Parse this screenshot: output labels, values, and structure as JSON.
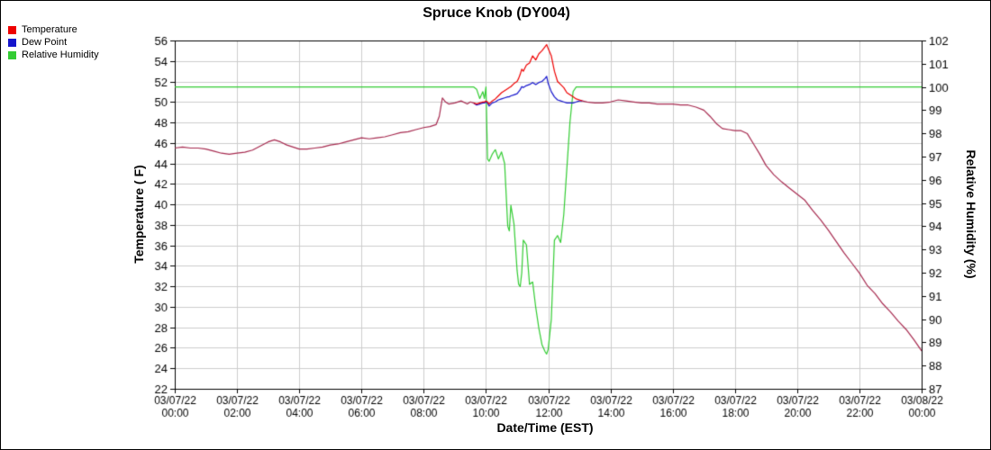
{
  "chart_data": {
    "type": "line",
    "title": "Spruce Knob (DY004)",
    "xlabel": "Date/Time (EST)",
    "ylabel_left": "Temperature ( F)",
    "ylabel_right": "Relative Humidity (%)",
    "legend_position": "top-left",
    "grid": true,
    "colors": {
      "temperature": "#ee0000",
      "dew_point": "#1515cc",
      "humidity": "#33cc33",
      "temp_dew_overlap": "#a62a4f",
      "grid": "#cccccc",
      "axis": "#000000"
    },
    "x_axis": {
      "min": 0,
      "max": 24,
      "ticks": [
        0,
        2,
        4,
        6,
        8,
        10,
        12,
        14,
        16,
        18,
        20,
        22,
        24
      ],
      "tick_labels": [
        [
          "03/07/22",
          "00:00"
        ],
        [
          "03/07/22",
          "02:00"
        ],
        [
          "03/07/22",
          "04:00"
        ],
        [
          "03/07/22",
          "06:00"
        ],
        [
          "03/07/22",
          "08:00"
        ],
        [
          "03/07/22",
          "10:00"
        ],
        [
          "03/07/22",
          "12:00"
        ],
        [
          "03/07/22",
          "14:00"
        ],
        [
          "03/07/22",
          "16:00"
        ],
        [
          "03/07/22",
          "18:00"
        ],
        [
          "03/07/22",
          "20:00"
        ],
        [
          "03/07/22",
          "22:00"
        ],
        [
          "03/08/22",
          "00:00"
        ]
      ]
    },
    "y_left": {
      "min": 22,
      "max": 56,
      "step": 2
    },
    "y_right": {
      "min": 87,
      "max": 102,
      "step": 1
    },
    "x_hours": [
      0,
      0.25,
      0.5,
      0.75,
      1,
      1.25,
      1.5,
      1.75,
      2,
      2.25,
      2.5,
      2.75,
      3,
      3.2,
      3.4,
      3.6,
      3.8,
      4,
      4.25,
      4.5,
      4.75,
      5,
      5.25,
      5.5,
      5.75,
      6,
      6.25,
      6.5,
      6.75,
      7,
      7.25,
      7.5,
      7.75,
      8,
      8.2,
      8.4,
      8.5,
      8.6,
      8.7,
      8.8,
      9,
      9.2,
      9.4,
      9.5,
      9.6,
      9.7,
      9.8,
      9.9,
      9.95,
      10,
      10.05,
      10.1,
      10.2,
      10.3,
      10.4,
      10.5,
      10.6,
      10.7,
      10.75,
      10.8,
      10.9,
      11,
      11.05,
      11.1,
      11.15,
      11.2,
      11.3,
      11.4,
      11.5,
      11.6,
      11.7,
      11.8,
      11.9,
      11.95,
      12,
      12.1,
      12.2,
      12.3,
      12.4,
      12.5,
      12.6,
      12.7,
      12.8,
      12.9,
      13,
      13.1,
      13.25,
      13.5,
      13.75,
      14,
      14.25,
      14.5,
      14.75,
      15,
      15.25,
      15.5,
      15.75,
      16,
      16.25,
      16.5,
      16.75,
      17,
      17.2,
      17.4,
      17.6,
      17.8,
      18,
      18.2,
      18.4,
      18.6,
      18.8,
      19,
      19.25,
      19.5,
      19.75,
      20,
      20.25,
      20.5,
      20.75,
      21,
      21.25,
      21.5,
      21.75,
      22,
      22.25,
      22.5,
      22.75,
      23,
      23.25,
      23.5,
      23.75,
      24
    ],
    "series": [
      {
        "name": "Temperature",
        "axis": "left",
        "values": [
          45.5,
          45.6,
          45.5,
          45.5,
          45.4,
          45.2,
          45.0,
          44.9,
          45.0,
          45.1,
          45.3,
          45.7,
          46.1,
          46.3,
          46.1,
          45.8,
          45.6,
          45.4,
          45.4,
          45.5,
          45.6,
          45.8,
          45.9,
          46.1,
          46.3,
          46.5,
          46.4,
          46.5,
          46.6,
          46.8,
          47.0,
          47.1,
          47.3,
          47.5,
          47.6,
          47.8,
          48.6,
          50.4,
          50.0,
          49.8,
          49.9,
          50.1,
          49.8,
          50.0,
          49.9,
          49.8,
          49.9,
          50.0,
          50.0,
          50.1,
          50.0,
          49.8,
          50.1,
          50.3,
          50.6,
          50.9,
          51.1,
          51.3,
          51.4,
          51.5,
          51.8,
          52.0,
          52.3,
          52.7,
          53.2,
          53.0,
          53.6,
          53.8,
          54.5,
          54.1,
          54.7,
          55.0,
          55.4,
          55.6,
          55.2,
          54.5,
          53.0,
          52.0,
          51.7,
          51.4,
          50.9,
          50.7,
          50.5,
          50.3,
          50.2,
          50.1,
          50.0,
          49.9,
          49.9,
          50.0,
          50.2,
          50.1,
          50.0,
          49.9,
          49.9,
          49.8,
          49.8,
          49.8,
          49.7,
          49.7,
          49.5,
          49.2,
          48.6,
          47.9,
          47.4,
          47.3,
          47.2,
          47.2,
          46.9,
          45.9,
          44.9,
          43.8,
          42.9,
          42.2,
          41.6,
          41.0,
          40.4,
          39.4,
          38.5,
          37.5,
          36.4,
          35.3,
          34.3,
          33.3,
          32.1,
          31.3,
          30.3,
          29.5,
          28.6,
          27.8,
          26.8,
          25.7
        ]
      },
      {
        "name": "Dew Point",
        "axis": "left",
        "values": [
          45.5,
          45.6,
          45.5,
          45.5,
          45.4,
          45.2,
          45.0,
          44.9,
          45.0,
          45.1,
          45.3,
          45.7,
          46.1,
          46.3,
          46.1,
          45.8,
          45.6,
          45.4,
          45.4,
          45.5,
          45.6,
          45.8,
          45.9,
          46.1,
          46.3,
          46.5,
          46.4,
          46.5,
          46.6,
          46.8,
          47.0,
          47.1,
          47.3,
          47.5,
          47.6,
          47.8,
          48.6,
          50.4,
          50.0,
          49.8,
          49.9,
          50.1,
          49.8,
          50.0,
          49.9,
          49.7,
          49.8,
          49.9,
          49.9,
          50.0,
          49.9,
          49.6,
          49.9,
          50.0,
          50.2,
          50.3,
          50.4,
          50.5,
          50.5,
          50.6,
          50.7,
          50.8,
          51.0,
          51.2,
          51.5,
          51.4,
          51.6,
          51.7,
          51.9,
          51.7,
          51.9,
          52.0,
          52.3,
          52.5,
          51.8,
          51.0,
          50.5,
          50.2,
          50.1,
          50.0,
          49.9,
          49.9,
          49.9,
          50.0,
          50.1,
          50.1,
          50.0,
          49.9,
          49.9,
          50.0,
          50.2,
          50.1,
          50.0,
          49.9,
          49.9,
          49.8,
          49.8,
          49.8,
          49.7,
          49.7,
          49.5,
          49.2,
          48.6,
          47.9,
          47.4,
          47.3,
          47.2,
          47.2,
          46.9,
          45.9,
          44.9,
          43.8,
          42.9,
          42.2,
          41.6,
          41.0,
          40.4,
          39.4,
          38.5,
          37.5,
          36.4,
          35.3,
          34.3,
          33.3,
          32.1,
          31.3,
          30.3,
          29.5,
          28.6,
          27.8,
          26.8,
          25.7
        ]
      },
      {
        "name": "Relative Humidity",
        "axis": "right",
        "values": [
          100,
          100,
          100,
          100,
          100,
          100,
          100,
          100,
          100,
          100,
          100,
          100,
          100,
          100,
          100,
          100,
          100,
          100,
          100,
          100,
          100,
          100,
          100,
          100,
          100,
          100,
          100,
          100,
          100,
          100,
          100,
          100,
          100,
          100,
          100,
          100,
          100,
          100,
          100,
          100,
          100,
          100,
          100,
          100,
          100,
          99.9,
          99.5,
          99.8,
          99.5,
          100,
          96.9,
          96.8,
          97.1,
          97.3,
          96.9,
          97.2,
          96.7,
          94.0,
          93.8,
          94.9,
          94.1,
          92.1,
          91.5,
          91.4,
          92.0,
          93.4,
          93.2,
          91.5,
          91.6,
          90.5,
          89.6,
          88.9,
          88.6,
          88.5,
          88.7,
          90.0,
          93.4,
          93.6,
          93.3,
          94.5,
          96.5,
          98.5,
          99.8,
          100,
          100,
          100,
          100,
          100,
          100,
          100,
          100,
          100,
          100,
          100,
          100,
          100,
          100,
          100,
          100,
          100,
          100,
          100,
          100,
          100,
          100,
          100,
          100,
          100,
          100,
          100,
          100,
          100,
          100,
          100,
          100,
          100,
          100,
          100,
          100,
          100,
          100,
          100,
          100,
          100,
          100,
          100,
          100,
          100,
          100,
          100,
          100,
          100,
          100
        ]
      }
    ]
  }
}
